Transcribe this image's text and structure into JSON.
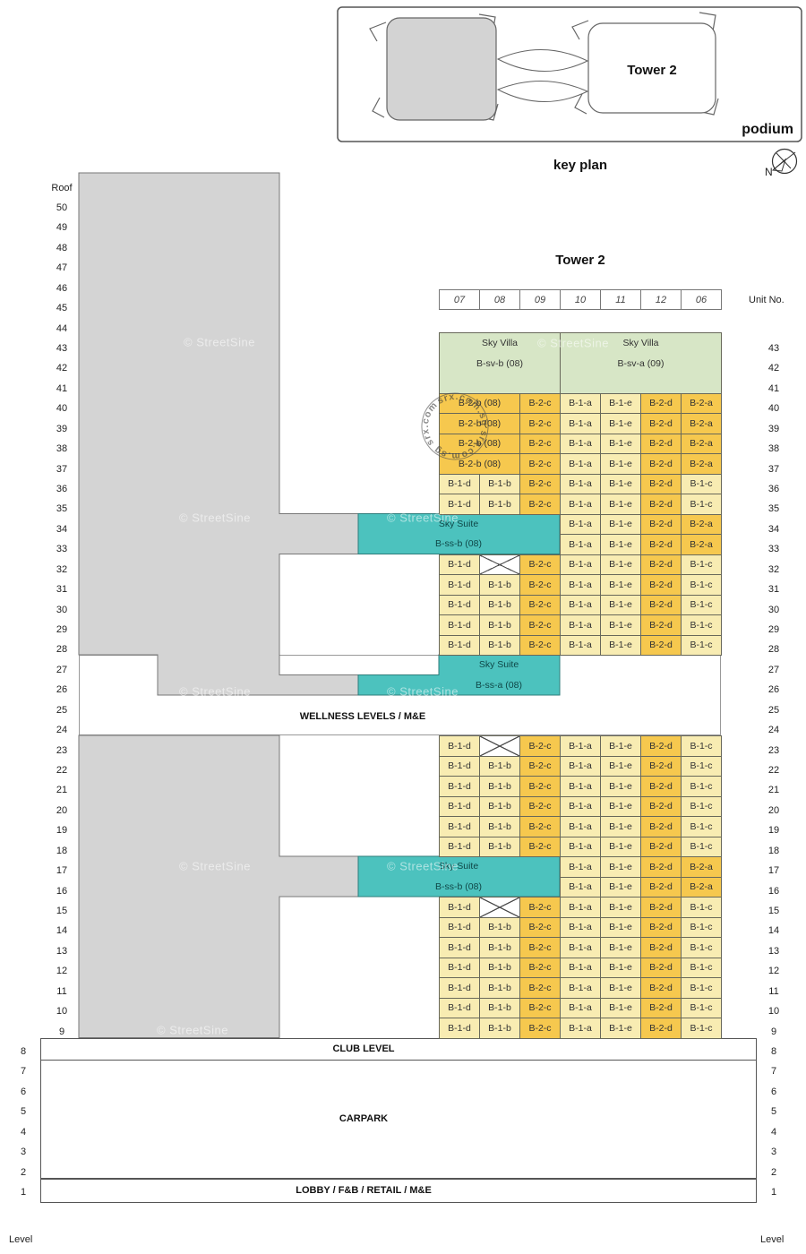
{
  "key_plan": {
    "tower_label": "Tower 2",
    "podium_label": "podium",
    "caption": "key plan",
    "north_label": "N"
  },
  "header": {
    "title": "Tower 2",
    "unit_no_label": "Unit No.",
    "unit_numbers": [
      "07",
      "08",
      "09",
      "10",
      "11",
      "12",
      "06"
    ]
  },
  "axes": {
    "left": [
      "Roof",
      "50",
      "49",
      "48",
      "47",
      "46",
      "45",
      "44",
      "43",
      "42",
      "41",
      "40",
      "39",
      "38",
      "37",
      "36",
      "35",
      "34",
      "33",
      "32",
      "31",
      "30",
      "29",
      "28",
      "27",
      "26",
      "25",
      "24",
      "23",
      "22",
      "21",
      "20",
      "19",
      "18",
      "17",
      "16",
      "15",
      "14",
      "13",
      "12",
      "11",
      "10",
      "9",
      "8",
      "7",
      "6",
      "5",
      "4",
      "3",
      "2",
      "1"
    ],
    "right": [
      "43",
      "42",
      "41",
      "40",
      "39",
      "38",
      "37",
      "36",
      "35",
      "34",
      "33",
      "32",
      "31",
      "30",
      "29",
      "28",
      "27",
      "26",
      "25",
      "24",
      "23",
      "22",
      "21",
      "20",
      "19",
      "18",
      "17",
      "16",
      "15",
      "14",
      "13",
      "12",
      "11",
      "10",
      "9",
      "8",
      "7",
      "6",
      "5",
      "4",
      "3",
      "2",
      "1"
    ],
    "left_bottom_label": "Level",
    "right_bottom_label": "Level"
  },
  "sky_villas": [
    {
      "line1": "Sky Villa",
      "line2": "B-sv-b (08)"
    },
    {
      "line1": "Sky Villa",
      "line2": "B-sv-a (09)"
    }
  ],
  "sky_suites": [
    {
      "line1": "Sky Suite",
      "line2": "B-ss-b (08)"
    },
    {
      "line1": "Sky Suite",
      "line2": "B-ss-a (08)"
    },
    {
      "line1": "Sky Suite",
      "line2": "B-ss-b (08)"
    }
  ],
  "bands": {
    "wellness": "WELLNESS LEVELS / M&E",
    "club": "CLUB LEVEL",
    "carpark": "CARPARK",
    "lobby": "LOBBY / F&B / RETAIL / M&E"
  },
  "watermark": "© StreetSine",
  "stamp": "srx.com.sg   srx.com.sg   srx.com.sg",
  "colors": {
    "one_bedroom": "#F8ECB2",
    "two_bedroom": "#F6C84E",
    "sky_villa": "#D7E6C6",
    "sky_suite": "#4CC2BE",
    "massing": "#D4D4D4"
  },
  "grid": {
    "row_groups": [
      {
        "levels": [
          40,
          39,
          38,
          37
        ],
        "start": 0,
        "cells": [
          {
            "label": "B-2-b (08)",
            "color": "orange",
            "span": 2
          },
          {
            "label": "B-2-c",
            "color": "orange"
          },
          {
            "label": "B-1-a",
            "color": "cream"
          },
          {
            "label": "B-1-e",
            "color": "cream"
          },
          {
            "label": "B-2-d",
            "color": "orange"
          },
          {
            "label": "B-2-a",
            "color": "orange"
          }
        ]
      },
      {
        "levels": [
          36,
          35
        ],
        "start": 0,
        "cells": [
          {
            "label": "B-1-d",
            "color": "cream"
          },
          {
            "label": "B-1-b",
            "color": "cream"
          },
          {
            "label": "B-2-c",
            "color": "orange"
          },
          {
            "label": "B-1-a",
            "color": "cream"
          },
          {
            "label": "B-1-e",
            "color": "cream"
          },
          {
            "label": "B-2-d",
            "color": "orange"
          },
          {
            "label": "B-1-c",
            "color": "cream"
          }
        ]
      },
      {
        "levels": [
          34,
          33
        ],
        "start": 3,
        "cells": [
          {
            "label": "B-1-a",
            "color": "cream"
          },
          {
            "label": "B-1-e",
            "color": "cream"
          },
          {
            "label": "B-2-d",
            "color": "orange"
          },
          {
            "label": "B-2-a",
            "color": "orange"
          }
        ]
      },
      {
        "levels": [
          32
        ],
        "start": 0,
        "cells": [
          {
            "label": "B-1-d",
            "color": "cream"
          },
          {
            "label": "",
            "color": "x"
          },
          {
            "label": "B-2-c",
            "color": "orange"
          },
          {
            "label": "B-1-a",
            "color": "cream"
          },
          {
            "label": "B-1-e",
            "color": "cream"
          },
          {
            "label": "B-2-d",
            "color": "orange"
          },
          {
            "label": "B-1-c",
            "color": "cream"
          }
        ]
      },
      {
        "levels": [
          31,
          30,
          29,
          28
        ],
        "start": 0,
        "cells": [
          {
            "label": "B-1-d",
            "color": "cream"
          },
          {
            "label": "B-1-b",
            "color": "cream"
          },
          {
            "label": "B-2-c",
            "color": "orange"
          },
          {
            "label": "B-1-a",
            "color": "cream"
          },
          {
            "label": "B-1-e",
            "color": "cream"
          },
          {
            "label": "B-2-d",
            "color": "orange"
          },
          {
            "label": "B-1-c",
            "color": "cream"
          }
        ]
      },
      {
        "levels": [
          23
        ],
        "start": 0,
        "cells": [
          {
            "label": "B-1-d",
            "color": "cream"
          },
          {
            "label": "",
            "color": "x"
          },
          {
            "label": "B-2-c",
            "color": "orange"
          },
          {
            "label": "B-1-a",
            "color": "cream"
          },
          {
            "label": "B-1-e",
            "color": "cream"
          },
          {
            "label": "B-2-d",
            "color": "orange"
          },
          {
            "label": "B-1-c",
            "color": "cream"
          }
        ]
      },
      {
        "levels": [
          22,
          21,
          20,
          19,
          18
        ],
        "start": 0,
        "cells": [
          {
            "label": "B-1-d",
            "color": "cream"
          },
          {
            "label": "B-1-b",
            "color": "cream"
          },
          {
            "label": "B-2-c",
            "color": "orange"
          },
          {
            "label": "B-1-a",
            "color": "cream"
          },
          {
            "label": "B-1-e",
            "color": "cream"
          },
          {
            "label": "B-2-d",
            "color": "orange"
          },
          {
            "label": "B-1-c",
            "color": "cream"
          }
        ]
      },
      {
        "levels": [
          17,
          16
        ],
        "start": 3,
        "cells": [
          {
            "label": "B-1-a",
            "color": "cream"
          },
          {
            "label": "B-1-e",
            "color": "cream"
          },
          {
            "label": "B-2-d",
            "color": "orange"
          },
          {
            "label": "B-2-a",
            "color": "orange"
          }
        ]
      },
      {
        "levels": [
          15
        ],
        "start": 0,
        "cells": [
          {
            "label": "B-1-d",
            "color": "cream"
          },
          {
            "label": "",
            "color": "x"
          },
          {
            "label": "B-2-c",
            "color": "orange"
          },
          {
            "label": "B-1-a",
            "color": "cream"
          },
          {
            "label": "B-1-e",
            "color": "cream"
          },
          {
            "label": "B-2-d",
            "color": "orange"
          },
          {
            "label": "B-1-c",
            "color": "cream"
          }
        ]
      },
      {
        "levels": [
          14,
          13,
          12,
          11,
          10,
          9
        ],
        "start": 0,
        "cells": [
          {
            "label": "B-1-d",
            "color": "cream"
          },
          {
            "label": "B-1-b",
            "color": "cream"
          },
          {
            "label": "B-2-c",
            "color": "orange"
          },
          {
            "label": "B-1-a",
            "color": "cream"
          },
          {
            "label": "B-1-e",
            "color": "cream"
          },
          {
            "label": "B-2-d",
            "color": "orange"
          },
          {
            "label": "B-1-c",
            "color": "cream"
          }
        ]
      }
    ]
  }
}
